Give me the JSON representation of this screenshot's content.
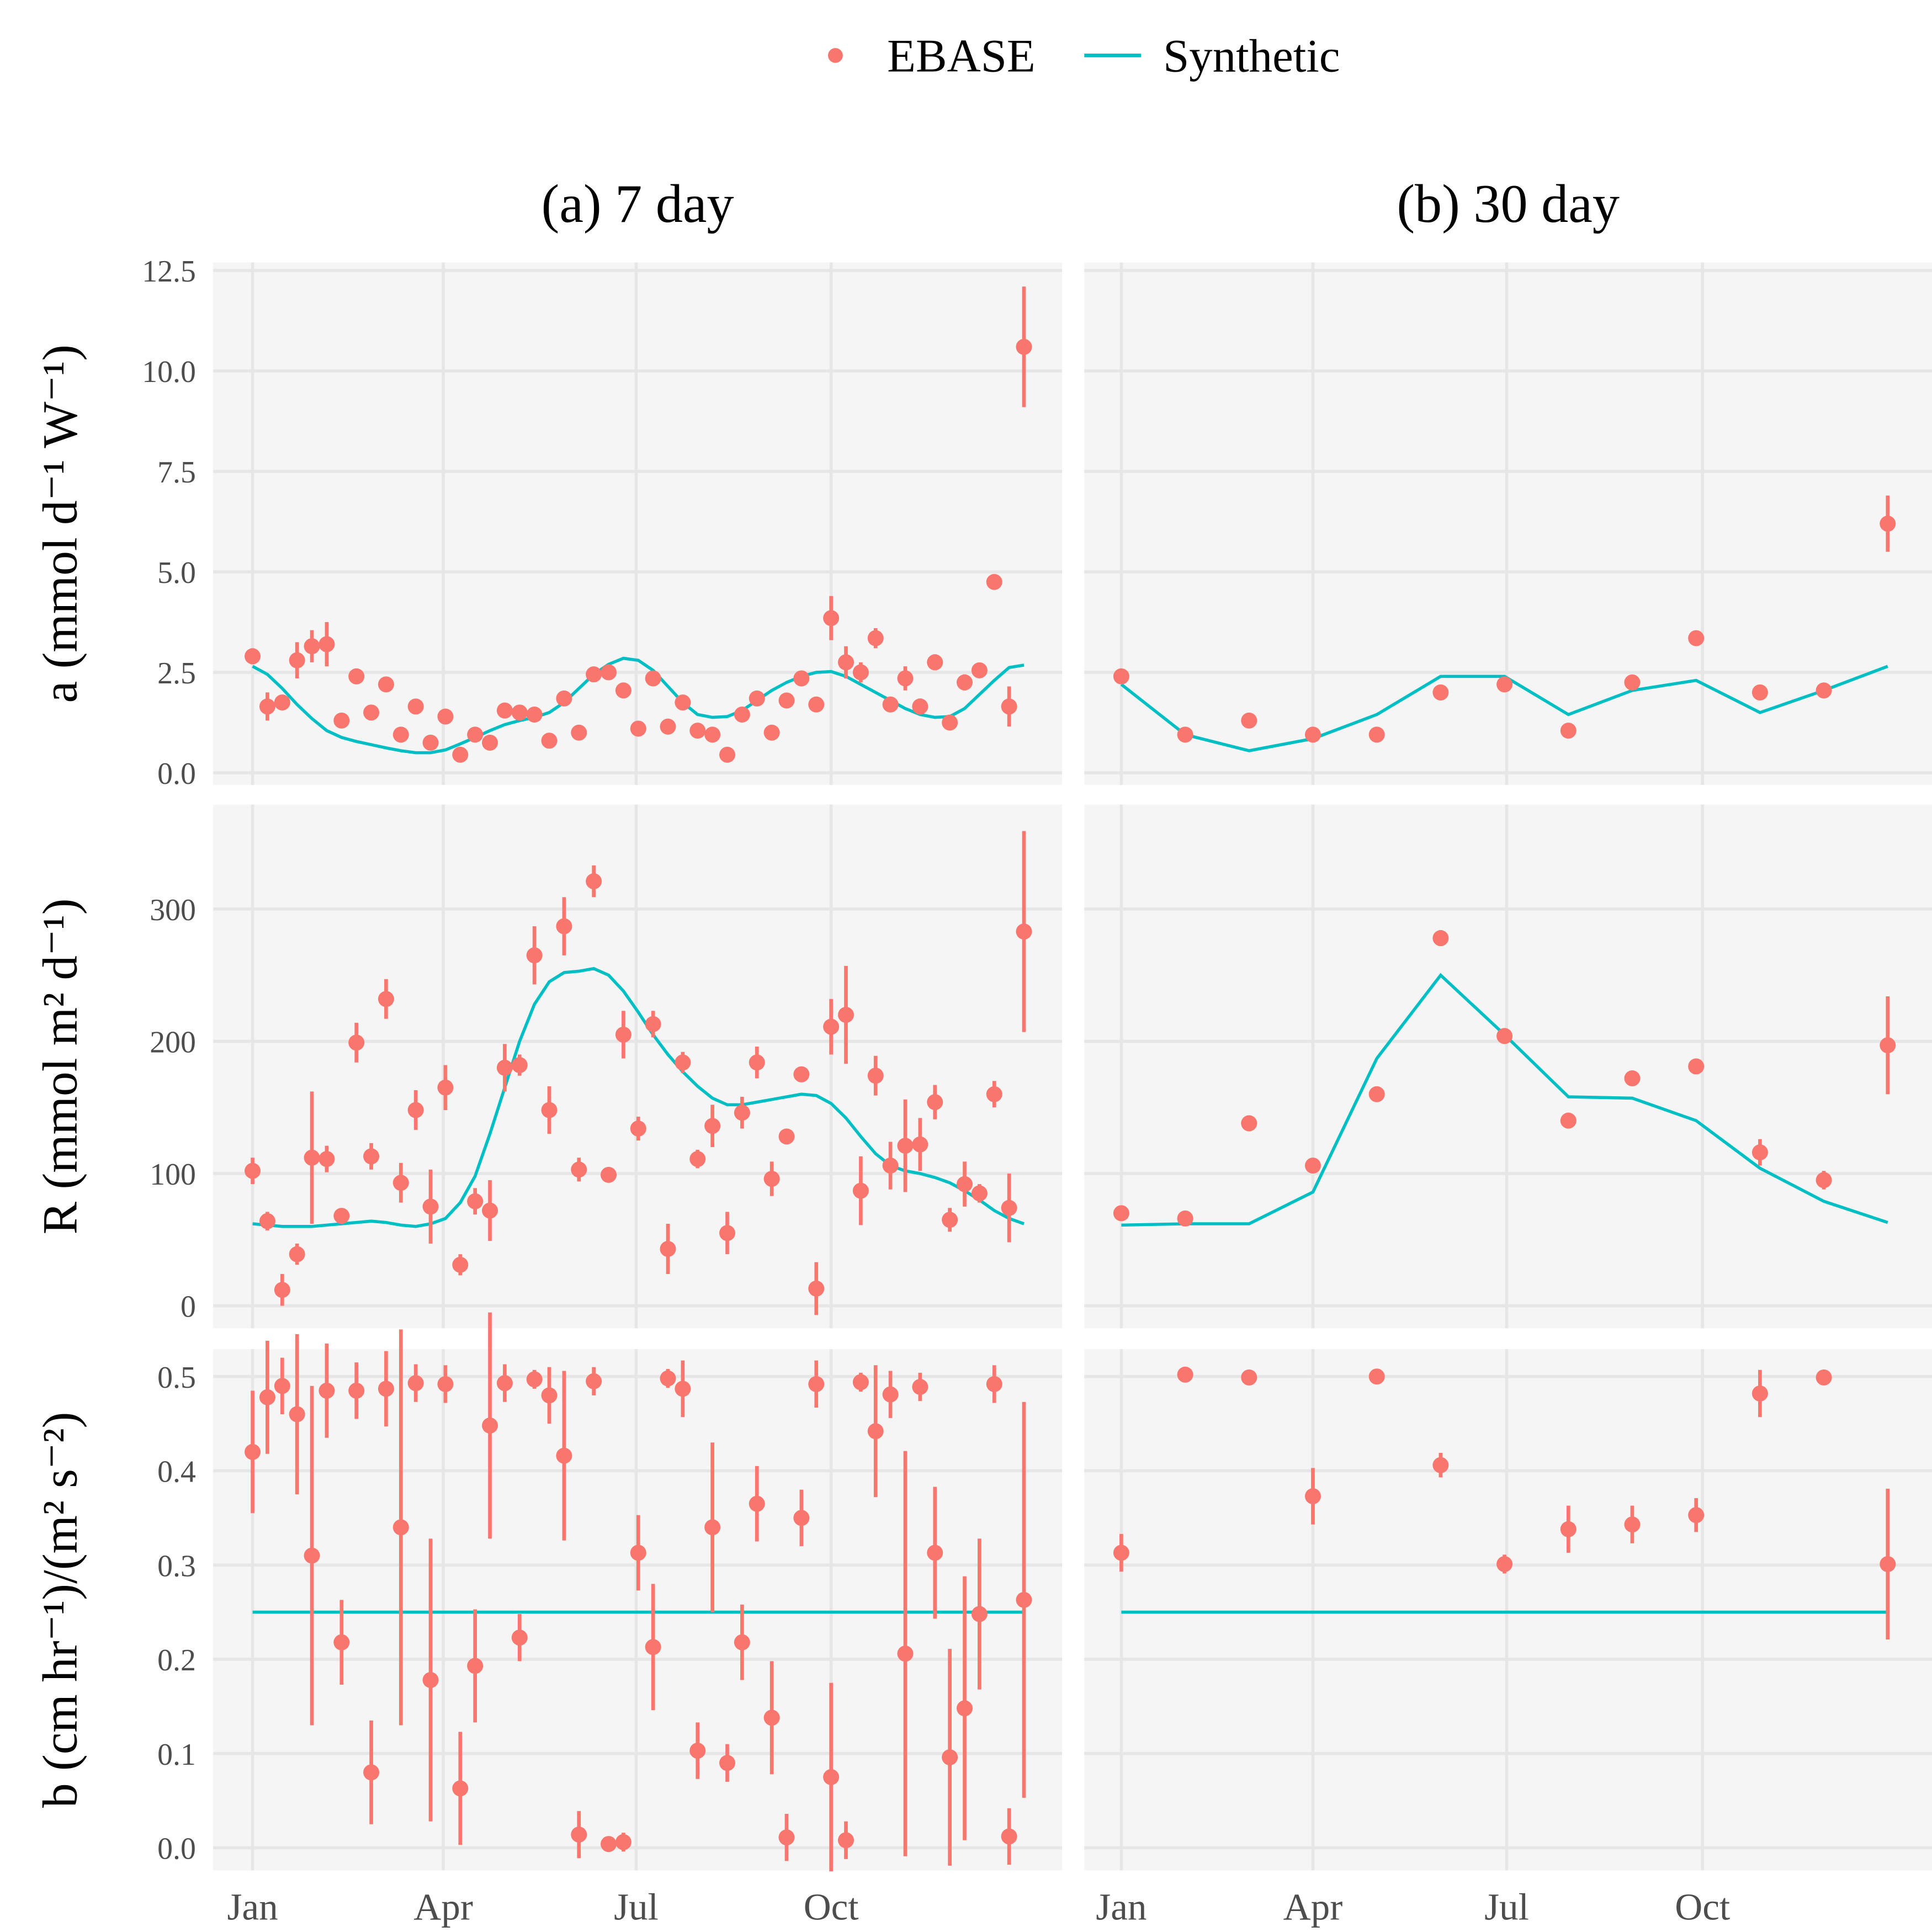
{
  "chart_data": [
    {
      "type": "scatter",
      "title": "(a) 7 day",
      "y_label": "a (mmol d⁻¹ W⁻¹)",
      "ylim": [
        -0.3,
        12.7
      ],
      "yticks": [
        {
          "value": 0,
          "label": "0.0"
        },
        2.5,
        {
          "value": 5,
          "label": "5.0"
        },
        7.5,
        {
          "value": 10,
          "label": "10.0"
        },
        12.5
      ],
      "x": [
        0,
        7,
        14,
        21,
        28,
        35,
        42,
        49,
        56,
        63,
        70,
        77,
        84,
        91,
        98,
        105,
        112,
        119,
        126,
        133,
        140,
        147,
        154,
        161,
        168,
        175,
        182,
        189,
        196,
        203,
        210,
        217,
        224,
        231,
        238,
        245,
        252,
        259,
        266,
        273,
        280,
        287,
        294,
        301,
        308,
        315,
        322,
        329,
        336,
        343,
        350,
        357,
        364
      ],
      "series": [
        {
          "name": "EBASE",
          "color": "#F8766D",
          "type": "scatter",
          "values": [
            2.9,
            1.65,
            1.75,
            2.8,
            3.15,
            3.2,
            1.3,
            2.4,
            1.5,
            2.2,
            0.95,
            1.65,
            0.75,
            1.4,
            0.45,
            0.95,
            0.75,
            1.55,
            1.5,
            1.45,
            0.8,
            1.85,
            1.0,
            2.45,
            2.5,
            2.05,
            1.1,
            2.35,
            1.15,
            1.75,
            1.05,
            0.95,
            0.45,
            1.45,
            1.85,
            1.0,
            1.8,
            2.35,
            1.7,
            3.85,
            2.75,
            2.5,
            3.35,
            1.7,
            2.35,
            1.65,
            2.75,
            1.25,
            2.25,
            2.55,
            4.75,
            1.65,
            10.6
          ],
          "errors": [
            0.2,
            0.35,
            0.1,
            0.45,
            0.4,
            0.55,
            0.1,
            0.1,
            0.1,
            0.1,
            0.1,
            0.1,
            0.15,
            0.1,
            0.1,
            0.1,
            0.1,
            0.1,
            0.1,
            0.1,
            0.1,
            0.1,
            0.1,
            0.1,
            0.1,
            0.1,
            0.1,
            0.1,
            0.1,
            0.1,
            0.1,
            0.1,
            0.1,
            0.1,
            0.1,
            0.1,
            0.1,
            0.1,
            0.1,
            0.55,
            0.4,
            0.25,
            0.25,
            0.1,
            0.3,
            0.2,
            0.2,
            0.1,
            0.2,
            0.1,
            0.15,
            0.5,
            1.5
          ]
        },
        {
          "name": "Synthetic",
          "color": "#00BFC4",
          "type": "line",
          "values": [
            2.65,
            2.45,
            2.1,
            1.7,
            1.35,
            1.05,
            0.88,
            0.78,
            0.7,
            0.62,
            0.55,
            0.5,
            0.5,
            0.57,
            0.72,
            0.88,
            1.05,
            1.2,
            1.3,
            1.38,
            1.5,
            1.75,
            2.1,
            2.45,
            2.7,
            2.85,
            2.8,
            2.55,
            2.15,
            1.75,
            1.45,
            1.38,
            1.4,
            1.55,
            1.8,
            2.05,
            2.25,
            2.4,
            2.5,
            2.52,
            2.4,
            2.2,
            2.0,
            1.8,
            1.6,
            1.45,
            1.38,
            1.4,
            1.6,
            1.95,
            2.3,
            2.62,
            2.68
          ]
        }
      ]
    },
    {
      "type": "scatter",
      "title": "(b) 30 day",
      "x": [
        0,
        30,
        60,
        90,
        120,
        150,
        180,
        210,
        240,
        270,
        300,
        330,
        360
      ],
      "series": [
        {
          "type": "scatter",
          "values": [
            2.4,
            0.95,
            1.3,
            0.95,
            0.95,
            2.0,
            2.2,
            1.05,
            2.25,
            3.35,
            2.0,
            2.05,
            6.2
          ],
          "errors": [
            0.1,
            0.1,
            0.1,
            0.1,
            0.1,
            0.1,
            0.1,
            0.1,
            0.1,
            0.1,
            0.1,
            0.1,
            0.7
          ]
        },
        {
          "type": "line",
          "values": [
            2.2,
            0.95,
            0.55,
            0.85,
            1.45,
            2.4,
            2.4,
            1.45,
            2.05,
            2.3,
            1.5,
            2.05,
            2.65
          ]
        }
      ]
    },
    {
      "type": "scatter",
      "y_label": "R (mmol m² d⁻¹)",
      "ylim": [
        -17,
        379
      ],
      "yticks": [
        0,
        100,
        200,
        300
      ],
      "x": [
        0,
        7,
        14,
        21,
        28,
        35,
        42,
        49,
        56,
        63,
        70,
        77,
        84,
        91,
        98,
        105,
        112,
        119,
        126,
        133,
        140,
        147,
        154,
        161,
        168,
        175,
        182,
        189,
        196,
        203,
        210,
        217,
        224,
        231,
        238,
        245,
        252,
        259,
        266,
        273,
        280,
        287,
        294,
        301,
        308,
        315,
        322,
        329,
        336,
        343,
        350,
        357,
        364
      ],
      "series": [
        {
          "type": "scatter",
          "values": [
            102,
            64,
            12,
            39,
            112,
            111,
            68,
            199,
            113,
            232,
            93,
            148,
            75,
            165,
            31,
            79,
            72,
            180,
            182,
            265,
            148,
            287,
            103,
            321,
            99,
            205,
            134,
            213,
            43,
            184,
            111,
            136,
            55,
            146,
            184,
            96,
            128,
            175,
            13,
            211,
            220,
            87,
            174,
            106,
            121,
            122,
            154,
            65,
            92,
            85,
            160,
            74,
            283
          ],
          "errors": [
            10,
            7,
            12,
            8,
            50,
            10,
            5,
            15,
            10,
            15,
            15,
            15,
            28,
            17,
            8,
            10,
            23,
            18,
            8,
            22,
            18,
            22,
            9,
            12,
            4,
            18,
            9,
            10,
            19,
            8,
            7,
            16,
            16,
            12,
            12,
            13,
            4,
            4,
            20,
            21,
            37,
            26,
            15,
            18,
            35,
            20,
            13,
            9,
            17,
            7,
            10,
            26,
            76
          ]
        },
        {
          "type": "line",
          "values": [
            62,
            61,
            60,
            60,
            60,
            61,
            62,
            63,
            64,
            63,
            61,
            60,
            62,
            66,
            78,
            98,
            130,
            165,
            200,
            228,
            245,
            252,
            253,
            255,
            250,
            238,
            222,
            205,
            190,
            177,
            166,
            157,
            152,
            152,
            154,
            156,
            158,
            160,
            159,
            153,
            142,
            128,
            115,
            106,
            102,
            100,
            97,
            93,
            87,
            80,
            72,
            66,
            62
          ]
        }
      ]
    },
    {
      "type": "scatter",
      "x": [
        0,
        30,
        60,
        90,
        120,
        150,
        180,
        210,
        240,
        270,
        300,
        330,
        360
      ],
      "series": [
        {
          "type": "scatter",
          "values": [
            70,
            66,
            138,
            106,
            160,
            278,
            204,
            140,
            172,
            181,
            116,
            95,
            197
          ],
          "errors": [
            4,
            3,
            6,
            4,
            5,
            6,
            4,
            6,
            4,
            4,
            10,
            7,
            37
          ]
        },
        {
          "type": "line",
          "values": [
            61,
            62,
            62,
            86,
            187,
            250,
            205,
            158,
            157,
            140,
            104,
            79,
            63
          ]
        }
      ]
    },
    {
      "type": "scatter",
      "y_label": "b (cm hr⁻¹)/(m² s⁻²)",
      "ylim": [
        -0.024,
        0.529
      ],
      "yticks": [
        {
          "value": 0,
          "label": "0.0"
        },
        0.1,
        0.2,
        0.3,
        0.4,
        0.5
      ],
      "xlim": [
        -18.6,
        382
      ],
      "xticks": [
        {
          "value": 0,
          "label": "Jan"
        },
        {
          "value": 90,
          "label": "Apr"
        },
        {
          "value": 181,
          "label": "Jul"
        },
        {
          "value": 273,
          "label": "Oct"
        }
      ],
      "x": [
        0,
        7,
        14,
        21,
        28,
        35,
        42,
        49,
        56,
        63,
        70,
        77,
        84,
        91,
        98,
        105,
        112,
        119,
        126,
        133,
        140,
        147,
        154,
        161,
        168,
        175,
        182,
        189,
        196,
        203,
        210,
        217,
        224,
        231,
        238,
        245,
        252,
        259,
        266,
        273,
        280,
        287,
        294,
        301,
        308,
        315,
        322,
        329,
        336,
        343,
        350,
        357,
        364
      ],
      "series": [
        {
          "type": "scatter",
          "values": [
            0.42,
            0.478,
            0.49,
            0.46,
            0.31,
            0.485,
            0.218,
            0.485,
            0.08,
            0.487,
            0.34,
            0.493,
            0.178,
            0.492,
            0.063,
            0.193,
            0.448,
            0.493,
            0.223,
            0.497,
            0.48,
            0.416,
            0.014,
            0.495,
            0.004,
            0.006,
            0.313,
            0.213,
            0.498,
            0.487,
            0.103,
            0.34,
            0.09,
            0.218,
            0.365,
            0.138,
            0.011,
            0.35,
            0.492,
            0.075,
            0.008,
            0.494,
            0.442,
            0.481,
            0.206,
            0.489,
            0.313,
            0.096,
            0.148,
            0.248,
            0.492,
            0.012,
            0.263
          ],
          "errors": [
            0.065,
            0.06,
            0.03,
            0.085,
            0.18,
            0.05,
            0.045,
            0.03,
            0.055,
            0.04,
            0.21,
            0.02,
            0.15,
            0.02,
            0.06,
            0.06,
            0.12,
            0.02,
            0.025,
            0.01,
            0.03,
            0.09,
            0.025,
            0.015,
            0.005,
            0.01,
            0.04,
            0.067,
            0.01,
            0.03,
            0.03,
            0.09,
            0.02,
            0.04,
            0.04,
            0.06,
            0.025,
            0.03,
            0.025,
            0.1,
            0.02,
            0.01,
            0.07,
            0.025,
            0.215,
            0.015,
            0.07,
            0.115,
            0.14,
            0.08,
            0.02,
            0.03,
            0.21
          ]
        },
        {
          "type": "line",
          "values": [
            0.25,
            0.25,
            0.25,
            0.25,
            0.25,
            0.25,
            0.25,
            0.25,
            0.25,
            0.25,
            0.25,
            0.25,
            0.25,
            0.25,
            0.25,
            0.25,
            0.25,
            0.25,
            0.25,
            0.25,
            0.25,
            0.25,
            0.25,
            0.25,
            0.25,
            0.25,
            0.25,
            0.25,
            0.25,
            0.25,
            0.25,
            0.25,
            0.25,
            0.25,
            0.25,
            0.25,
            0.25,
            0.25,
            0.25,
            0.25,
            0.25,
            0.25,
            0.25,
            0.25,
            0.25,
            0.25,
            0.25,
            0.25,
            0.25,
            0.25,
            0.25,
            0.25,
            0.25
          ]
        }
      ]
    },
    {
      "type": "scatter",
      "xlim": [
        -17.4,
        380.8
      ],
      "xticks": [
        {
          "value": 0,
          "label": "Jan"
        },
        {
          "value": 90,
          "label": "Apr"
        },
        {
          "value": 181,
          "label": "Jul"
        },
        {
          "value": 273,
          "label": "Oct"
        }
      ],
      "x": [
        0,
        30,
        60,
        90,
        120,
        150,
        180,
        210,
        240,
        270,
        300,
        330,
        360
      ],
      "series": [
        {
          "type": "scatter",
          "values": [
            0.313,
            0.502,
            0.499,
            0.373,
            0.5,
            0.406,
            0.301,
            0.338,
            0.343,
            0.353,
            0.482,
            0.499,
            0.301
          ],
          "errors": [
            0.02,
            0.003,
            0.008,
            0.03,
            0.003,
            0.013,
            0.01,
            0.025,
            0.02,
            0.018,
            0.025,
            0.005,
            0.08
          ]
        },
        {
          "type": "line",
          "values": [
            0.25,
            0.25,
            0.25,
            0.25,
            0.25,
            0.25,
            0.25,
            0.25,
            0.25,
            0.25,
            0.25,
            0.25,
            0.25
          ]
        }
      ]
    }
  ]
}
